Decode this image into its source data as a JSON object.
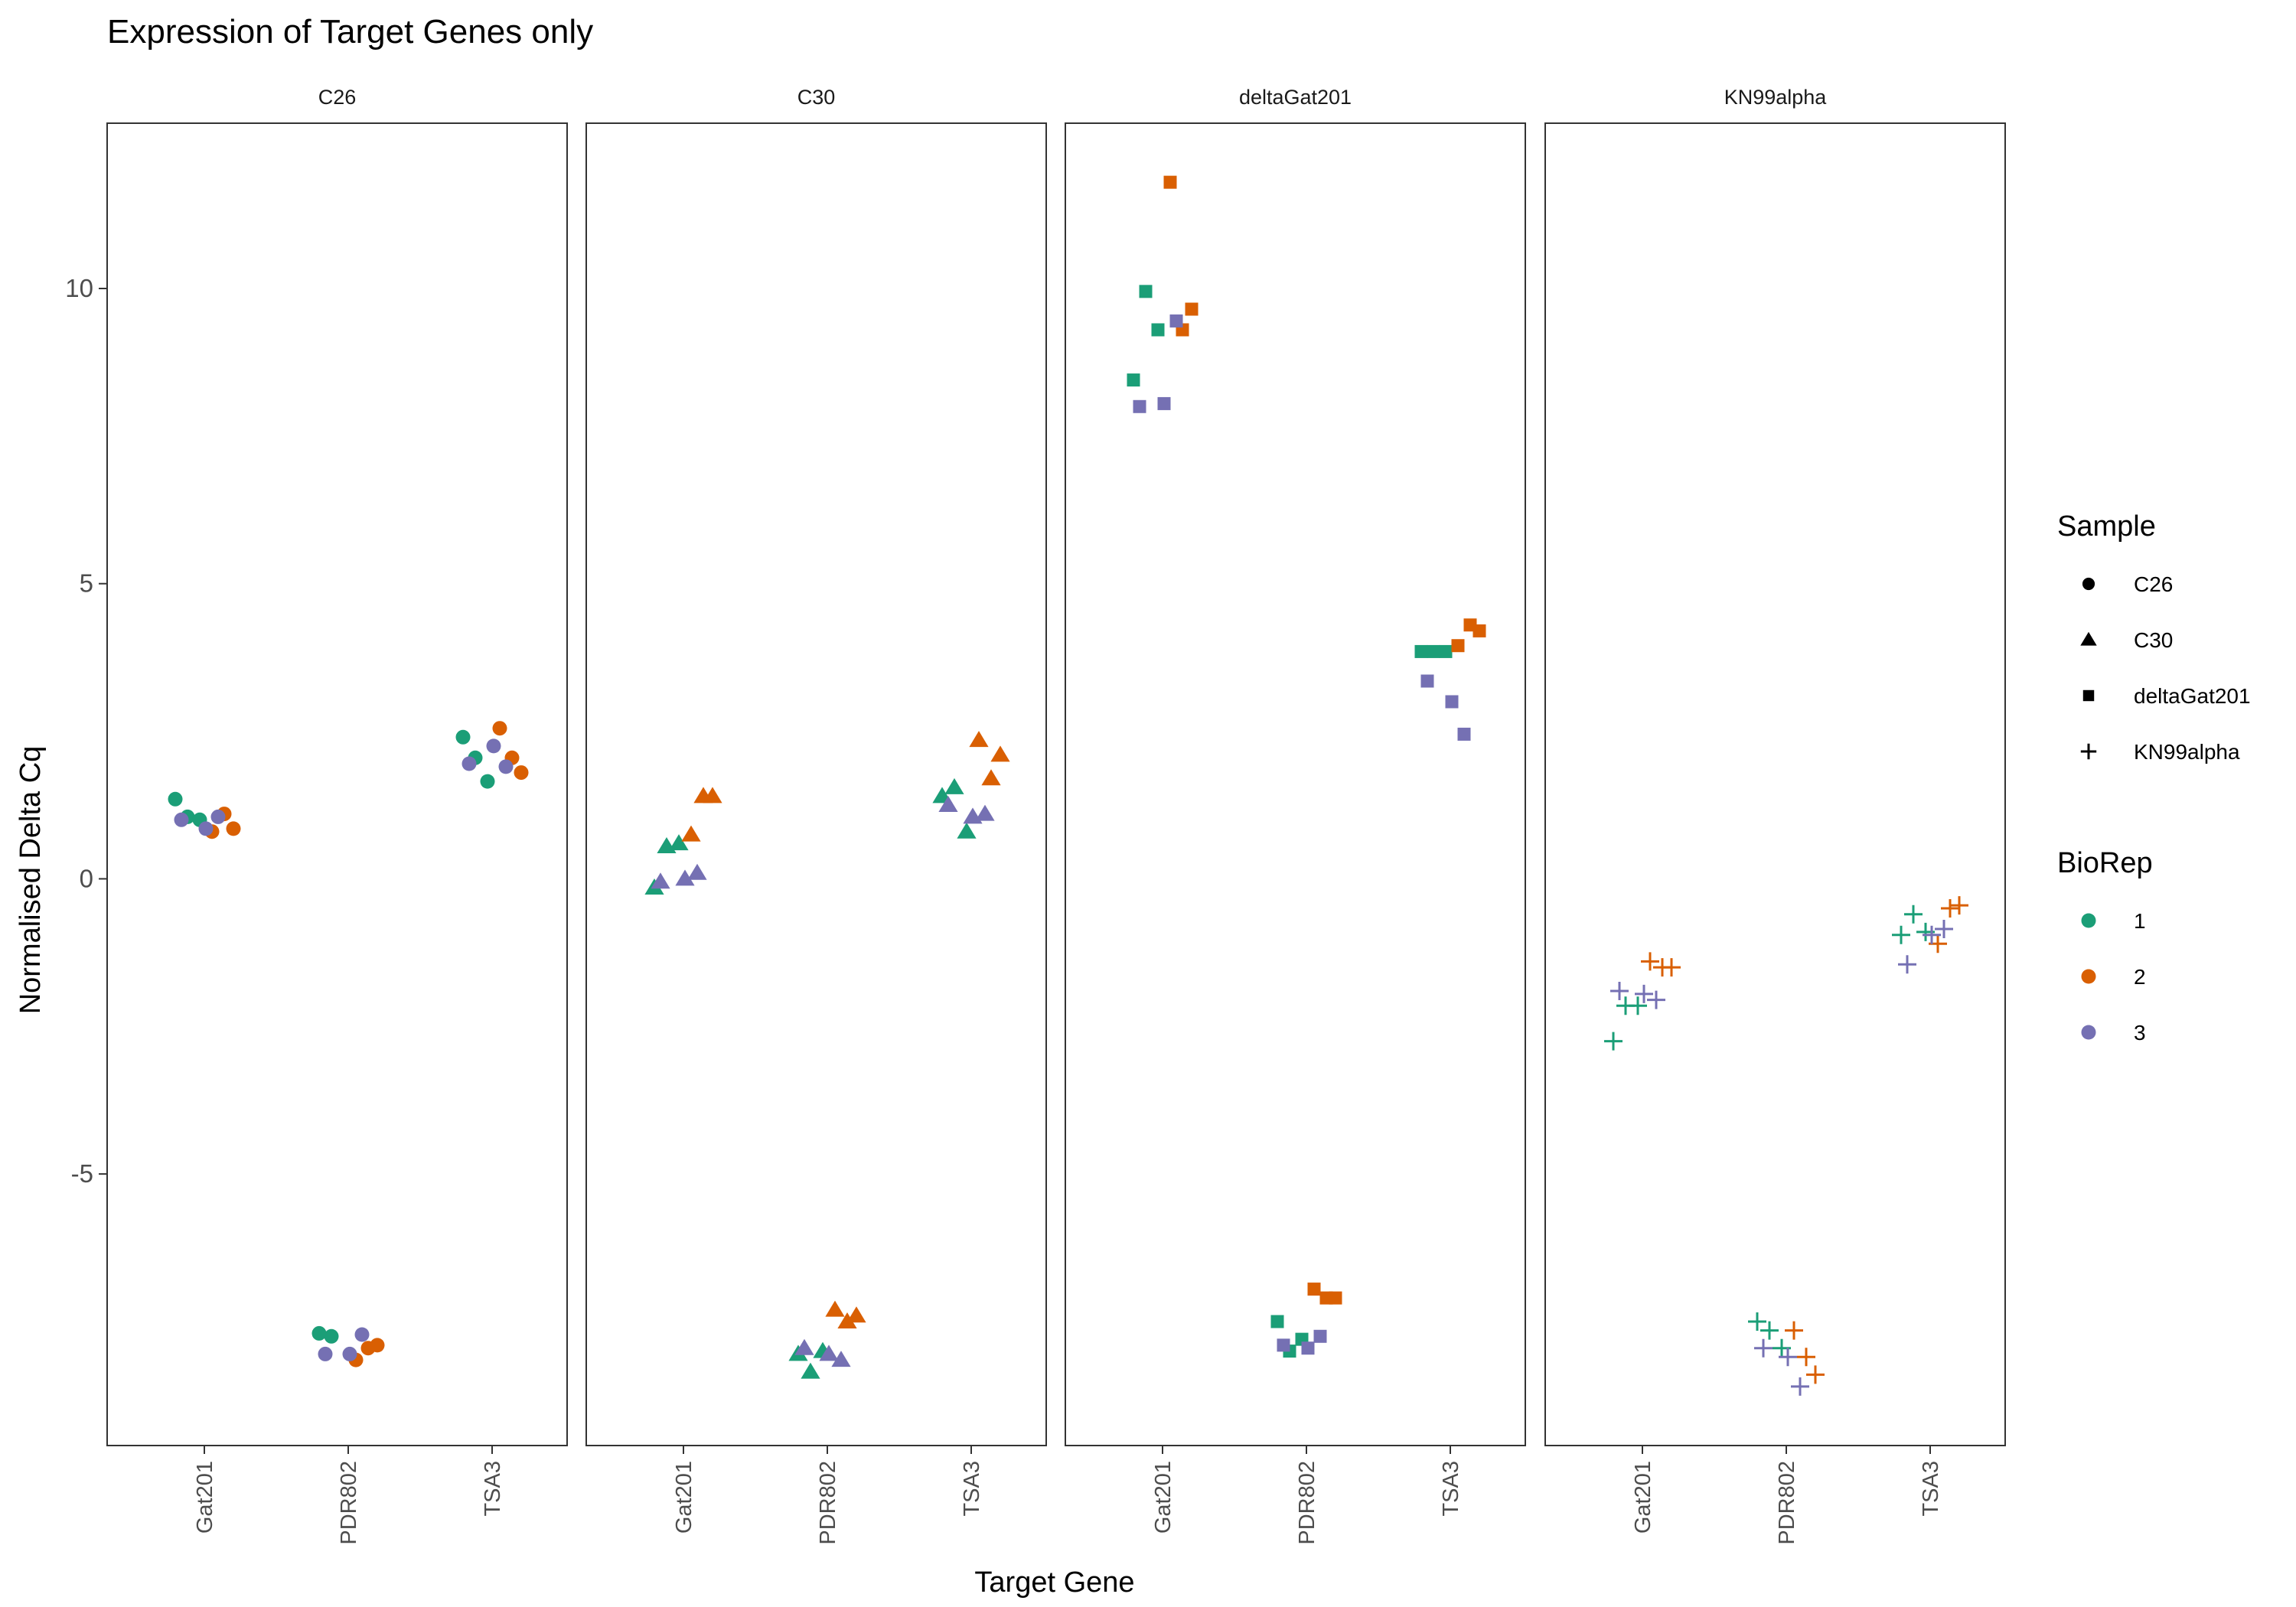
{
  "chart_data": {
    "type": "scatter",
    "title": "Expression of Target Genes only",
    "xlabel": "Target Gene",
    "ylabel": "Normalised Delta Cq",
    "ylim": [
      -9.6,
      12.8
    ],
    "yticks": [
      -5,
      0,
      5,
      10
    ],
    "categories": [
      "Gat201",
      "PDR802",
      "TSA3"
    ],
    "panels": [
      "C26",
      "C30",
      "deltaGat201",
      "KN99alpha"
    ],
    "legend_position": "right",
    "grid": false,
    "legends": {
      "shape": {
        "title": "Sample",
        "items": [
          {
            "label": "C26",
            "shape": "circle"
          },
          {
            "label": "C30",
            "shape": "triangle"
          },
          {
            "label": "deltaGat201",
            "shape": "square"
          },
          {
            "label": "KN99alpha",
            "shape": "plus"
          }
        ]
      },
      "color": {
        "title": "BioRep",
        "items": [
          {
            "label": "1",
            "color": "#1b9e77"
          },
          {
            "label": "2",
            "color": "#d95f02"
          },
          {
            "label": "3",
            "color": "#7570b3"
          }
        ]
      }
    },
    "series": [
      {
        "panel": "C26",
        "biorep": "1",
        "points": [
          [
            "Gat201",
            1.35
          ],
          [
            "Gat201",
            1.05
          ],
          [
            "Gat201",
            1.0
          ],
          [
            "PDR802",
            -7.7
          ],
          [
            "PDR802",
            -7.75
          ],
          [
            "TSA3",
            2.4
          ],
          [
            "TSA3",
            2.05
          ],
          [
            "TSA3",
            1.65
          ]
        ]
      },
      {
        "panel": "C26",
        "biorep": "2",
        "points": [
          [
            "Gat201",
            0.8
          ],
          [
            "Gat201",
            1.1
          ],
          [
            "Gat201",
            0.85
          ],
          [
            "PDR802",
            -8.15
          ],
          [
            "PDR802",
            -7.95
          ],
          [
            "PDR802",
            -7.9
          ],
          [
            "TSA3",
            2.55
          ],
          [
            "TSA3",
            2.05
          ],
          [
            "TSA3",
            1.8
          ]
        ]
      },
      {
        "panel": "C26",
        "biorep": "3",
        "points": [
          [
            "Gat201",
            1.0
          ],
          [
            "Gat201",
            0.85
          ],
          [
            "Gat201",
            1.05
          ],
          [
            "PDR802",
            -8.05
          ],
          [
            "PDR802",
            -8.05
          ],
          [
            "PDR802",
            -7.72
          ],
          [
            "TSA3",
            1.95
          ],
          [
            "TSA3",
            2.25
          ],
          [
            "TSA3",
            1.9
          ]
        ]
      },
      {
        "panel": "C30",
        "biorep": "1",
        "points": [
          [
            "Gat201",
            -0.15
          ],
          [
            "Gat201",
            0.55
          ],
          [
            "Gat201",
            0.6
          ],
          [
            "PDR802",
            -8.05
          ],
          [
            "PDR802",
            -8.35
          ],
          [
            "PDR802",
            -8.0
          ],
          [
            "TSA3",
            1.4
          ],
          [
            "TSA3",
            1.55
          ],
          [
            "TSA3",
            0.8
          ]
        ]
      },
      {
        "panel": "C30",
        "biorep": "2",
        "points": [
          [
            "Gat201",
            0.75
          ],
          [
            "Gat201",
            1.4
          ],
          [
            "Gat201",
            1.4
          ],
          [
            "PDR802",
            -7.3
          ],
          [
            "PDR802",
            -7.5
          ],
          [
            "PDR802",
            -7.4
          ],
          [
            "TSA3",
            2.35
          ],
          [
            "TSA3",
            1.7
          ],
          [
            "TSA3",
            2.1
          ]
        ]
      },
      {
        "panel": "C30",
        "biorep": "3",
        "points": [
          [
            "Gat201",
            -0.05
          ],
          [
            "Gat201",
            0.0
          ],
          [
            "Gat201",
            0.1
          ],
          [
            "PDR802",
            -7.95
          ],
          [
            "PDR802",
            -8.05
          ],
          [
            "PDR802",
            -8.15
          ],
          [
            "TSA3",
            1.25
          ],
          [
            "TSA3",
            1.05
          ],
          [
            "TSA3",
            1.1
          ]
        ]
      },
      {
        "panel": "deltaGat201",
        "biorep": "1",
        "points": [
          [
            "Gat201",
            8.45
          ],
          [
            "Gat201",
            9.95
          ],
          [
            "Gat201",
            9.3
          ],
          [
            "PDR802",
            -7.5
          ],
          [
            "PDR802",
            -8.0
          ],
          [
            "PDR802",
            -7.8
          ],
          [
            "TSA3",
            3.85
          ],
          [
            "TSA3",
            3.85
          ],
          [
            "TSA3",
            3.85
          ]
        ]
      },
      {
        "panel": "deltaGat201",
        "biorep": "2",
        "points": [
          [
            "Gat201",
            11.8
          ],
          [
            "Gat201",
            9.3
          ],
          [
            "Gat201",
            9.65
          ],
          [
            "PDR802",
            -6.95
          ],
          [
            "PDR802",
            -7.1
          ],
          [
            "PDR802",
            -7.1
          ],
          [
            "TSA3",
            3.95
          ],
          [
            "TSA3",
            4.3
          ],
          [
            "TSA3",
            4.2
          ]
        ]
      },
      {
        "panel": "deltaGat201",
        "biorep": "3",
        "points": [
          [
            "Gat201",
            8.0
          ],
          [
            "Gat201",
            8.05
          ],
          [
            "Gat201",
            9.45
          ],
          [
            "PDR802",
            -7.9
          ],
          [
            "PDR802",
            -7.95
          ],
          [
            "PDR802",
            -7.75
          ],
          [
            "TSA3",
            3.35
          ],
          [
            "TSA3",
            3.0
          ],
          [
            "TSA3",
            2.45
          ]
        ]
      },
      {
        "panel": "KN99alpha",
        "biorep": "1",
        "points": [
          [
            "Gat201",
            -2.75
          ],
          [
            "Gat201",
            -2.15
          ],
          [
            "Gat201",
            -2.15
          ],
          [
            "PDR802",
            -7.5
          ],
          [
            "PDR802",
            -7.65
          ],
          [
            "PDR802",
            -7.95
          ],
          [
            "TSA3",
            -0.95
          ],
          [
            "TSA3",
            -0.6
          ],
          [
            "TSA3",
            -0.9
          ]
        ]
      },
      {
        "panel": "KN99alpha",
        "biorep": "2",
        "points": [
          [
            "Gat201",
            -1.4
          ],
          [
            "Gat201",
            -1.5
          ],
          [
            "Gat201",
            -1.5
          ],
          [
            "PDR802",
            -7.65
          ],
          [
            "PDR802",
            -8.1
          ],
          [
            "PDR802",
            -8.4
          ],
          [
            "TSA3",
            -1.1
          ],
          [
            "TSA3",
            -0.5
          ],
          [
            "TSA3",
            -0.45
          ]
        ]
      },
      {
        "panel": "KN99alpha",
        "biorep": "3",
        "points": [
          [
            "Gat201",
            -1.9
          ],
          [
            "Gat201",
            -1.95
          ],
          [
            "Gat201",
            -2.05
          ],
          [
            "PDR802",
            -7.95
          ],
          [
            "PDR802",
            -8.1
          ],
          [
            "PDR802",
            -8.6
          ],
          [
            "TSA3",
            -1.45
          ],
          [
            "TSA3",
            -0.95
          ],
          [
            "TSA3",
            -0.85
          ]
        ]
      }
    ]
  }
}
